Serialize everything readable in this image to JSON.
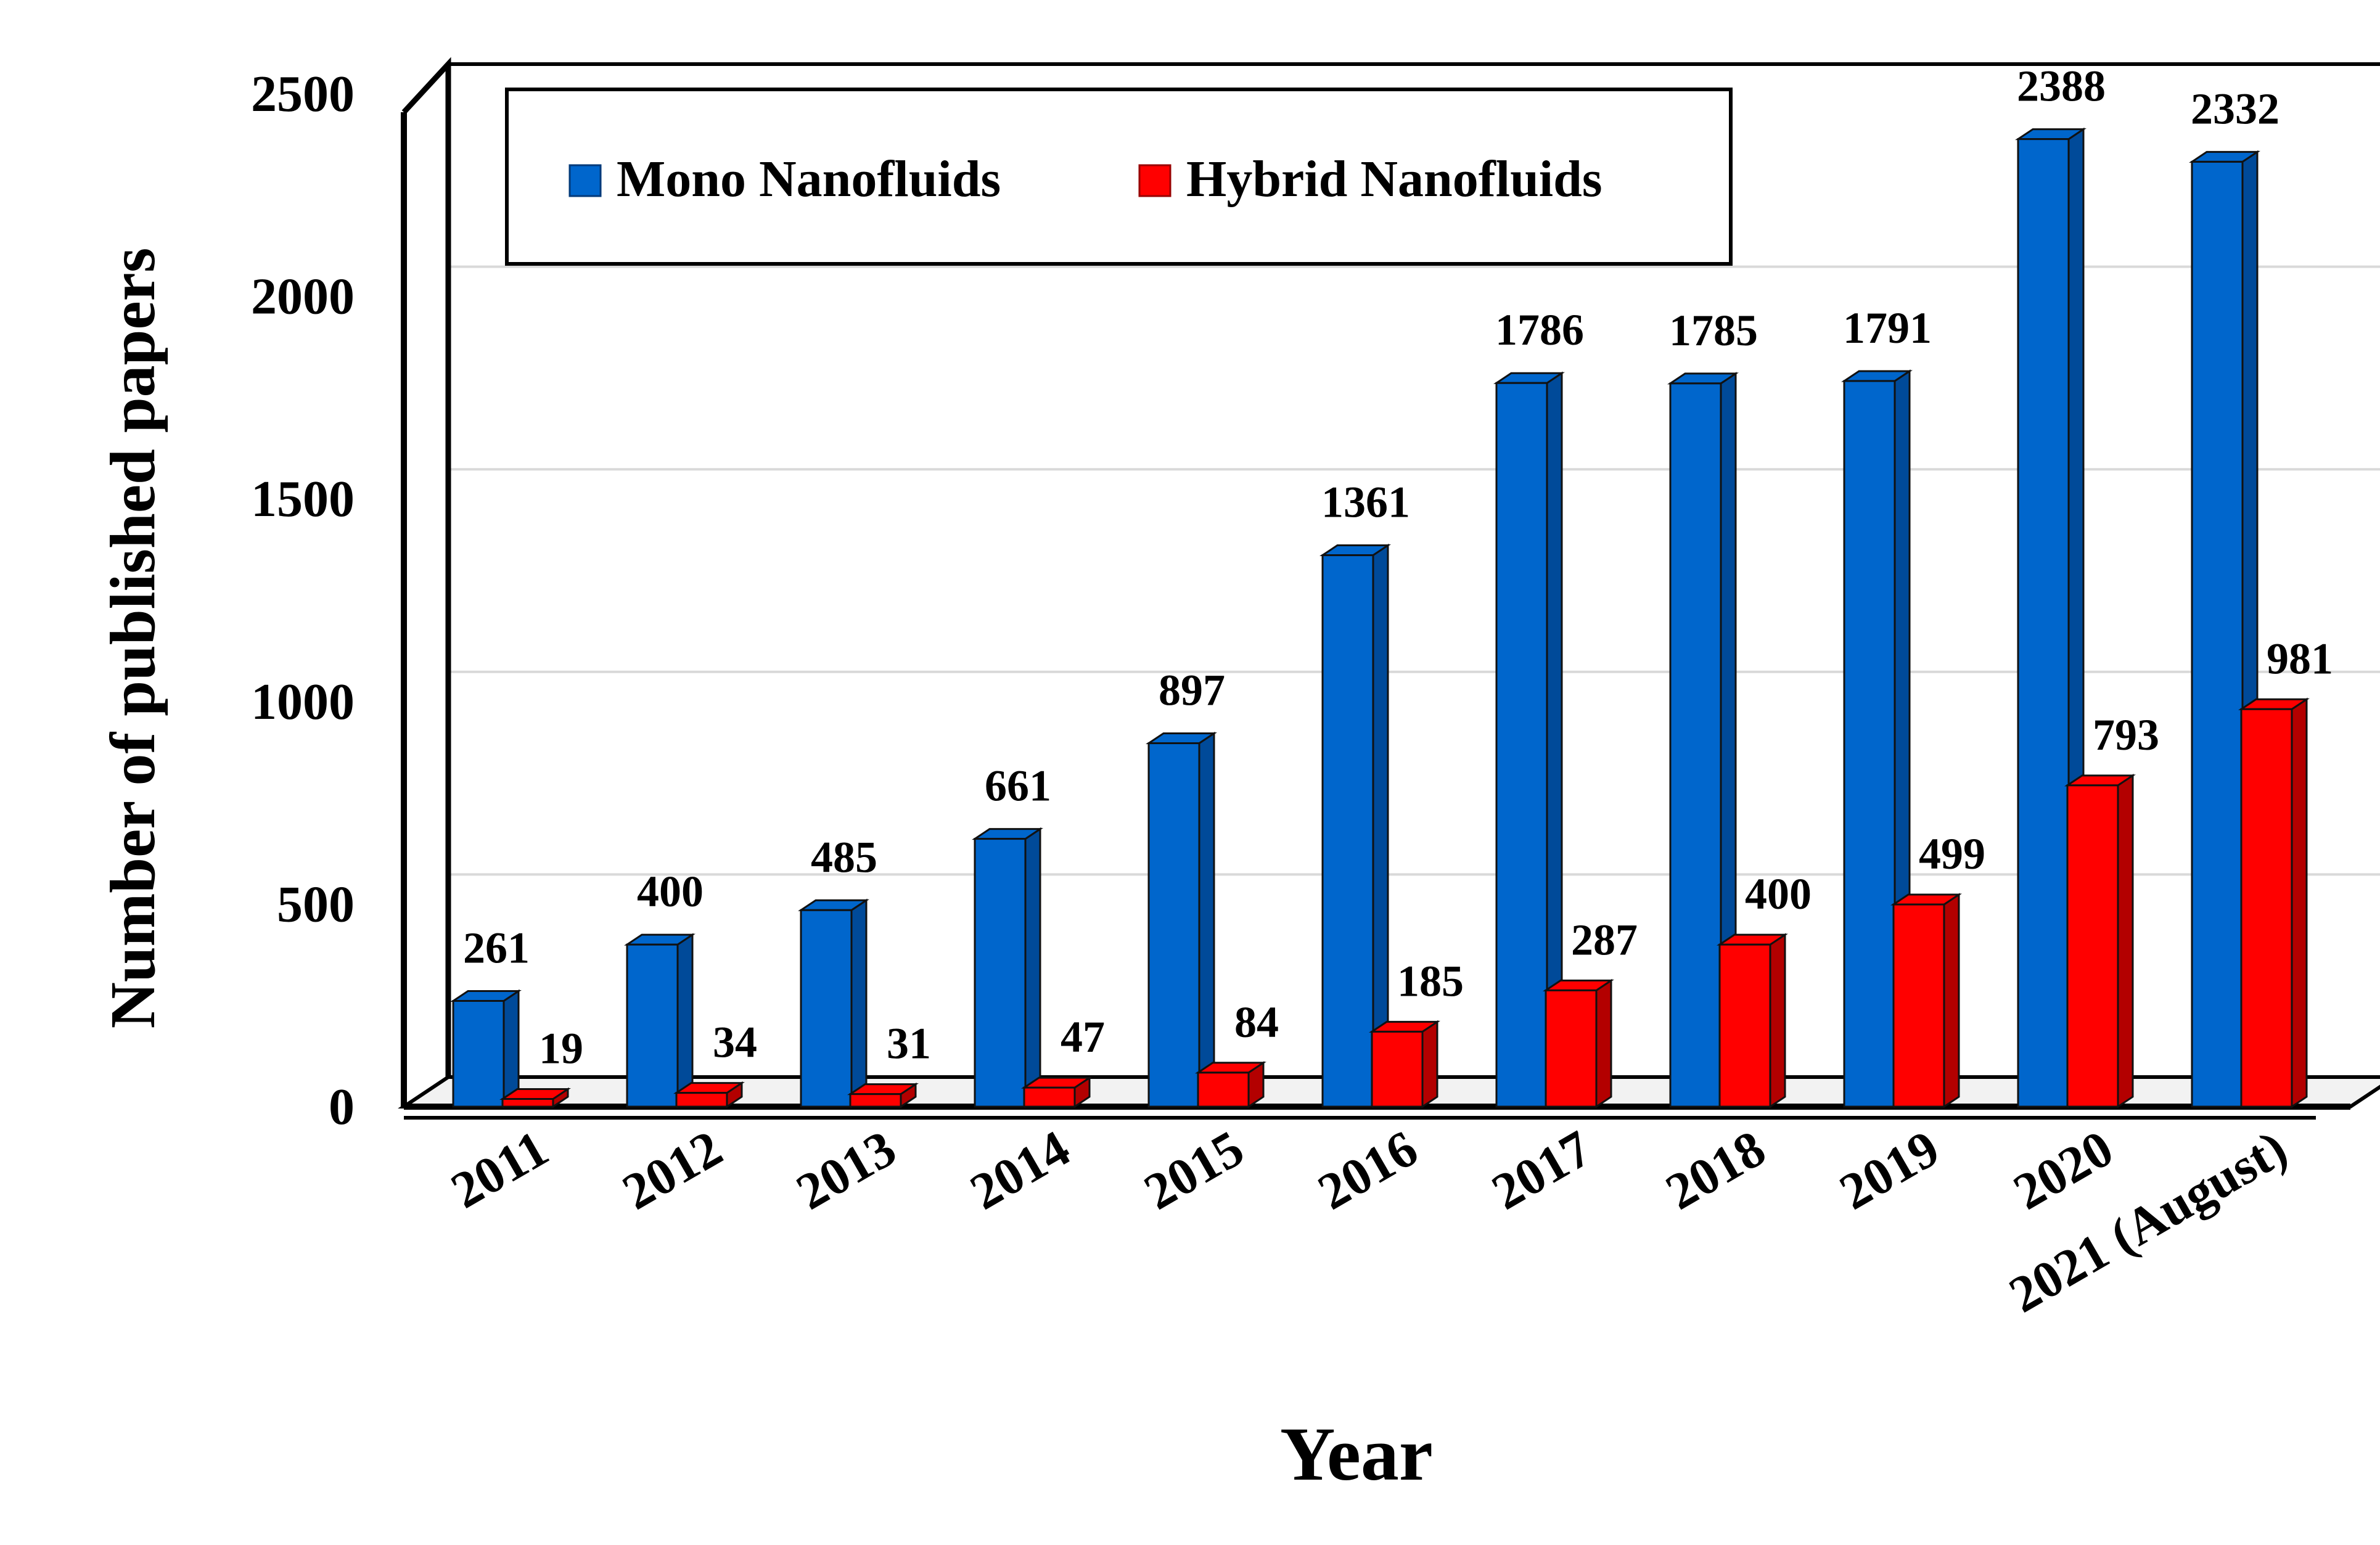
{
  "chart_data": {
    "type": "bar",
    "title": "",
    "xlabel": "Year",
    "ylabel": "Number of published papers",
    "ylim": [
      0,
      2500
    ],
    "yticks": [
      "0",
      "500",
      "1000",
      "1500",
      "2000",
      "2500"
    ],
    "grid": true,
    "legend_position": "top",
    "categories": [
      "2011",
      "2012",
      "2013",
      "2014",
      "2015",
      "2016",
      "2017",
      "2018",
      "2019",
      "2020",
      "2021 (August)"
    ],
    "series": [
      {
        "name": "Mono Nanofluids",
        "color": "#0066cc",
        "side_color": "#004a99",
        "values": [
          261,
          400,
          485,
          661,
          897,
          1361,
          1786,
          1785,
          1791,
          2388,
          2332
        ],
        "labels": [
          "261",
          "400",
          "485",
          "661",
          "897",
          "1361",
          "1786",
          "1785",
          "1791",
          "2388",
          "2332"
        ]
      },
      {
        "name": "Hybrid Nanofluids",
        "color": "#ff0000",
        "side_color": "#b30000",
        "values": [
          19,
          34,
          31,
          47,
          84,
          185,
          287,
          400,
          499,
          793,
          981
        ],
        "labels": [
          "19",
          "34",
          "31",
          "47",
          "84",
          "185",
          "287",
          "400",
          "499",
          "793",
          "981"
        ]
      }
    ]
  }
}
